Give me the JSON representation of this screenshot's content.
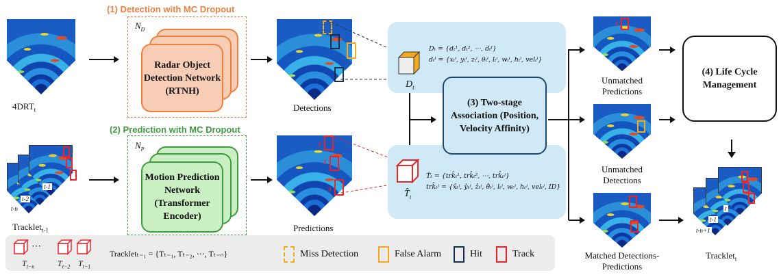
{
  "titles": {
    "detection": "(1) Detection with MC Dropout",
    "prediction": "(2) Prediction with MC Dropout"
  },
  "inputs": {
    "drt_label": "4DRT",
    "drt_sub": "t",
    "tracklet_label": "Tracklet",
    "tracklet_sub": "t-1",
    "frame_t1": "t-1",
    "frame_t2": "t-2",
    "frame_tn": "t-n"
  },
  "detection_net": {
    "n_label": "N",
    "n_sub": "D",
    "text": "Radar Object Detection Network (RTNH)"
  },
  "prediction_net": {
    "n_label": "N",
    "n_sub": "P",
    "text": "Motion Prediction Network (Transformer Encoder)"
  },
  "outputs": {
    "detections": "Detections",
    "predictions": "Predictions",
    "d_symbol": "D",
    "d_sub": "t",
    "t_symbol": "T̂",
    "t_sub": "t",
    "pred_marks": [
      "1",
      "2",
      "3"
    ]
  },
  "formulas": {
    "d1": "Dₜ = {dₜ¹, dₜ², ⋯, dₜᴵ}",
    "d2": "dₜⁱ = {xₜⁱ, yₜⁱ, zₜⁱ, θₜⁱ, lₜⁱ, wₜⁱ, hₜⁱ, velₜⁱ}",
    "t1": "T̂ₜ = {trk̂ₜ¹, trk̂ₜ², ⋯, trk̂ₜʲ}",
    "t2": "trk̂ₜʲ = {x̂ₜʲ, ŷₜʲ, ẑₜʲ, θ̂ₜʲ, lₜʲ, wₜʲ, hₜʲ, velₜʲ, ID}"
  },
  "association": "(3) Two-stage Association (Position, Velocity Affinity)",
  "lifecycle": "(4) Life Cycle Management",
  "results": {
    "unmatched_predictions": "Unmatched Predictions",
    "unmatched_detections": "Unmatched Detections",
    "matched": "Matched Detections-Predictions",
    "tracklet_label": "Tracklet",
    "tracklet_sub": "t",
    "frame_t1": "t-1",
    "frame_tn": "t-n+1",
    "frame_t": "t"
  },
  "legend": {
    "tn": "T",
    "tn_sub": "t−n",
    "t2": "T",
    "t2_sub": "t−2",
    "t1": "T",
    "t1_sub": "t−1",
    "dots": "⋯",
    "tracklet_def": "Trackletₜ₋₁ = {Tₜ₋₁, Tₜ₋₂, ⋯, Tₜ₋ₙ}",
    "miss": "Miss Detection",
    "false_alarm": "False Alarm",
    "hit": "Hit",
    "track": "Track"
  },
  "colors": {
    "detection_accent": "#f07f3c",
    "detection_fill": "#f8cdb5",
    "prediction_accent": "#3f9b3f",
    "prediction_fill": "#c9efc3",
    "panel": "#cfe9f6",
    "track": "#e8262a",
    "false_alarm": "#f5a81c",
    "miss": "#f5a81c",
    "hit": "#14304e"
  }
}
